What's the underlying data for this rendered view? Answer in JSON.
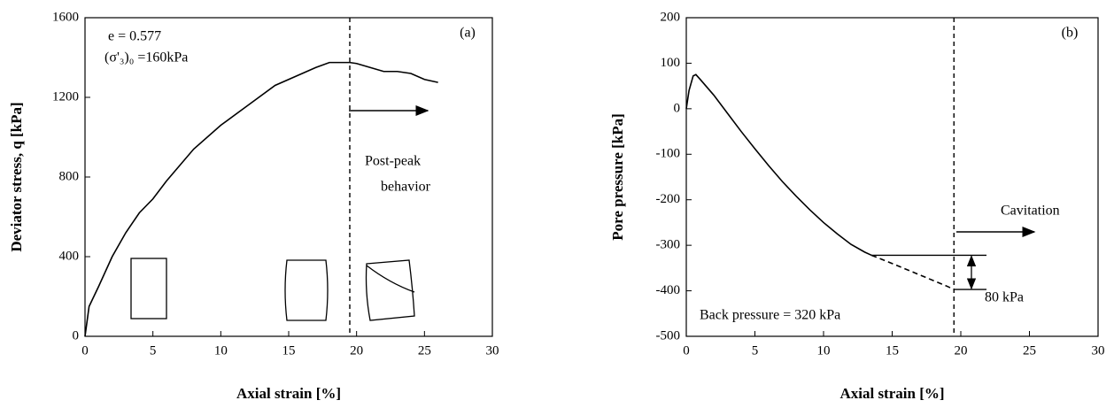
{
  "chart_data": [
    {
      "type": "line",
      "xlabel": "Axial strain [%]",
      "ylabel": "Deviator stress, q [kPa]",
      "xlim": [
        0,
        30
      ],
      "xticks": [
        0,
        5,
        10,
        15,
        20,
        25,
        30
      ],
      "ylim": [
        0,
        1600
      ],
      "yticks": [
        0,
        400,
        800,
        1200,
        1600
      ],
      "series": [
        {
          "color": "#000000",
          "dashed": false,
          "x": [
            0,
            0.3,
            1,
            2,
            3,
            4,
            5,
            6,
            8,
            10,
            12,
            14,
            16,
            17,
            18,
            19.5,
            20,
            21,
            22,
            23,
            24,
            25,
            26
          ],
          "values": [
            0,
            150,
            250,
            400,
            520,
            620,
            690,
            780,
            940,
            1060,
            1160,
            1260,
            1320,
            1350,
            1375,
            1375,
            1370,
            1350,
            1330,
            1330,
            1320,
            1290,
            1275
          ]
        }
      ],
      "vline": 19.5,
      "annotations": [
        "e = 0.577",
        "(σ'₃)₀ =160kPa",
        "(a)",
        "Post-peak",
        "behavior"
      ]
    },
    {
      "type": "line",
      "xlabel": "Axial strain [%]",
      "ylabel": "Pore pressure [kPa]",
      "xlim": [
        0,
        30
      ],
      "xticks": [
        0,
        5,
        10,
        15,
        20,
        25,
        30
      ],
      "ylim": [
        -500,
        200
      ],
      "yticks": [
        -500,
        -400,
        -300,
        -200,
        -100,
        0,
        100,
        200
      ],
      "series": [
        {
          "color": "#000000",
          "dashed": false,
          "x": [
            0,
            0.2,
            0.5,
            0.7,
            1,
            2,
            3,
            4,
            5,
            6,
            7,
            8,
            9,
            10,
            11,
            12,
            13,
            13.5
          ],
          "values": [
            0,
            40,
            72,
            75,
            65,
            30,
            -10,
            -50,
            -88,
            -125,
            -160,
            -192,
            -222,
            -250,
            -275,
            -298,
            -315,
            -322
          ]
        },
        {
          "color": "#000000",
          "dashed": true,
          "x": [
            13.5,
            15,
            17,
            19,
            19.5
          ],
          "values": [
            -322,
            -340,
            -365,
            -390,
            -397
          ]
        }
      ],
      "vline": 19.5,
      "hlines": [
        -322,
        -397
      ],
      "annotations": [
        "(b)",
        "Cavitation",
        "Back pressure = 320 kPa",
        "80 kPa"
      ]
    }
  ]
}
